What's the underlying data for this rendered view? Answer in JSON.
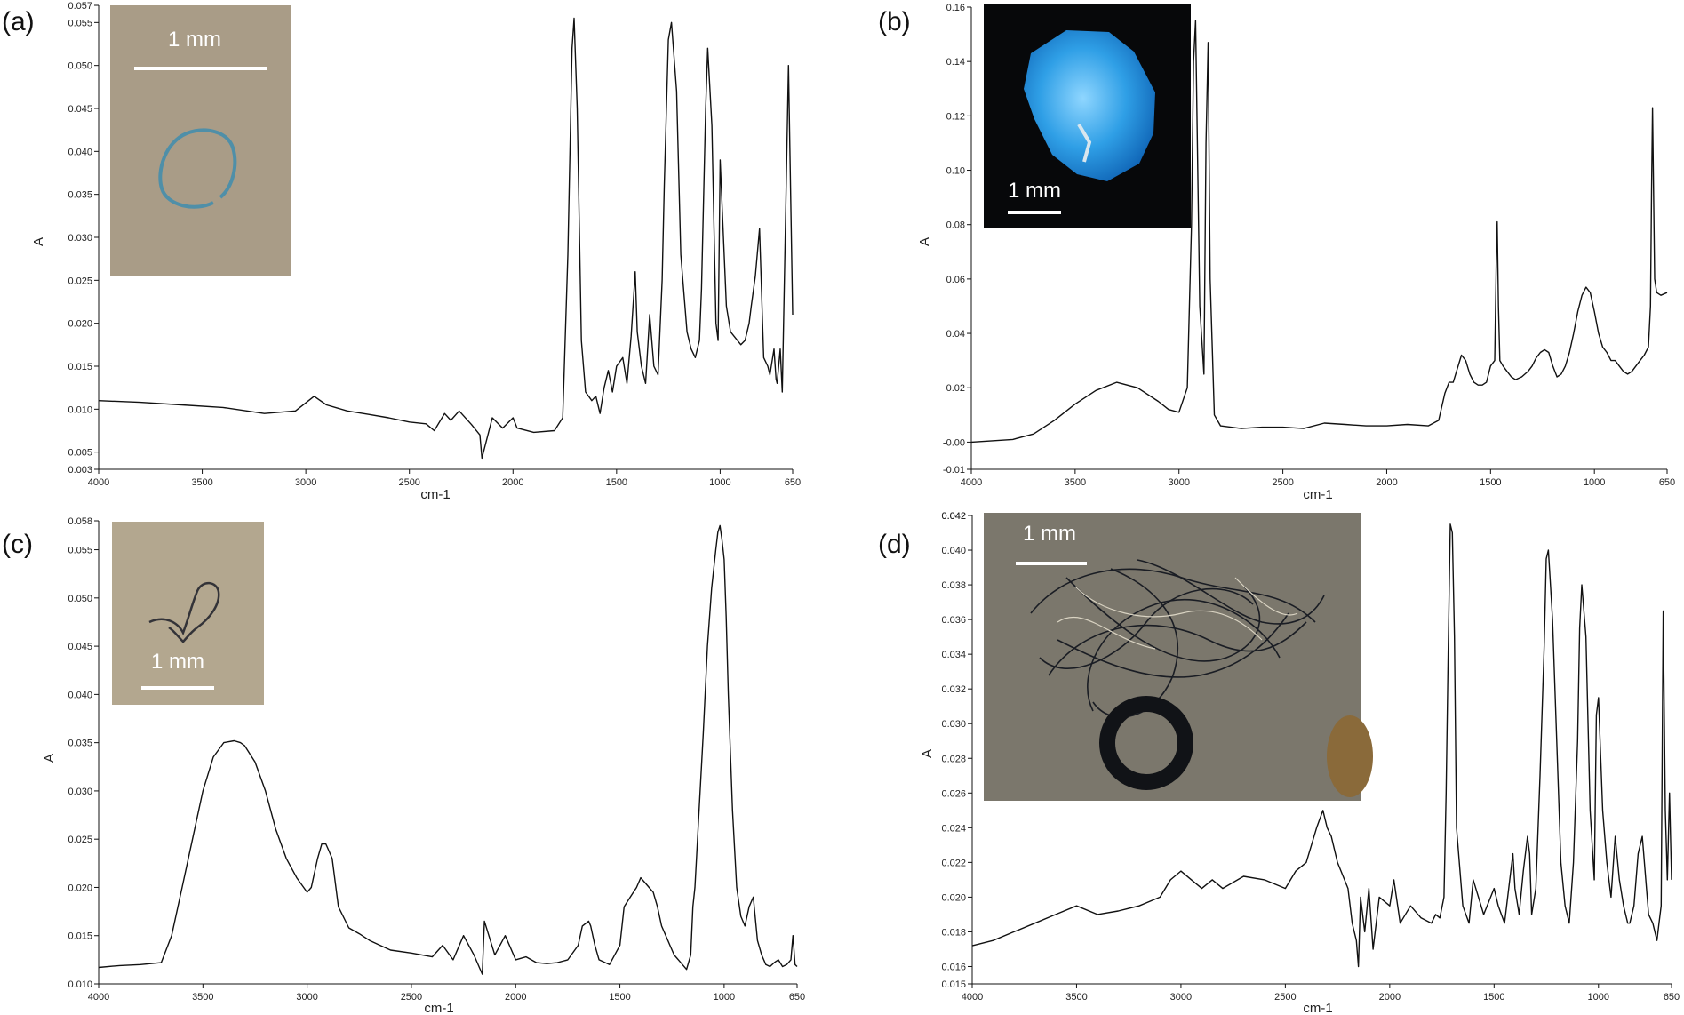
{
  "chart_data": [
    {
      "type": "line",
      "panel_label": "(a)",
      "xlabel": "cm-1",
      "ylabel": "A",
      "xlim": [
        4000,
        650
      ],
      "ylim": [
        0.003,
        0.057
      ],
      "x_ticks": [
        4000,
        3500,
        3000,
        2500,
        2000,
        1500,
        1000,
        650
      ],
      "y_ticks": [
        "0.003",
        "0.005",
        "0.010",
        "0.015",
        "0.020",
        "0.025",
        "0.030",
        "0.035",
        "0.040",
        "0.045",
        "0.050",
        "0.055",
        "0.057"
      ],
      "grid": false,
      "inset": {
        "scale_label": "1 mm",
        "style": "blue-loop-on-beige"
      },
      "series": [
        {
          "x": [
            4000,
            3800,
            3600,
            3400,
            3200,
            3050,
            2960,
            2900,
            2800,
            2700,
            2600,
            2500,
            2420,
            2380,
            2330,
            2300,
            2260,
            2200,
            2160,
            2150,
            2100,
            2050,
            2000,
            1980,
            1900,
            1800,
            1760,
            1735,
            1715,
            1705,
            1690,
            1670,
            1650,
            1620,
            1600,
            1580,
            1560,
            1540,
            1520,
            1500,
            1470,
            1450,
            1430,
            1410,
            1400,
            1380,
            1360,
            1340,
            1320,
            1300,
            1280,
            1270,
            1250,
            1235,
            1210,
            1190,
            1160,
            1140,
            1120,
            1100,
            1090,
            1070,
            1060,
            1040,
            1020,
            1010,
            1000,
            970,
            950,
            900,
            880,
            860,
            850,
            830,
            810,
            790,
            770,
            760,
            740,
            730,
            725,
            710,
            700,
            690,
            670,
            650
          ],
          "y": [
            0.011,
            0.0108,
            0.0105,
            0.0102,
            0.0095,
            0.0098,
            0.0115,
            0.0105,
            0.0098,
            0.0094,
            0.009,
            0.0085,
            0.0083,
            0.0075,
            0.0095,
            0.0087,
            0.0098,
            0.0082,
            0.007,
            0.0043,
            0.009,
            0.0078,
            0.009,
            0.0078,
            0.0073,
            0.0075,
            0.009,
            0.028,
            0.052,
            0.0555,
            0.045,
            0.018,
            0.012,
            0.011,
            0.0115,
            0.0095,
            0.0125,
            0.0145,
            0.012,
            0.015,
            0.016,
            0.013,
            0.0185,
            0.026,
            0.019,
            0.015,
            0.013,
            0.021,
            0.015,
            0.014,
            0.025,
            0.036,
            0.053,
            0.055,
            0.047,
            0.028,
            0.019,
            0.017,
            0.016,
            0.018,
            0.024,
            0.045,
            0.052,
            0.043,
            0.02,
            0.018,
            0.039,
            0.022,
            0.019,
            0.0175,
            0.018,
            0.02,
            0.022,
            0.0255,
            0.031,
            0.016,
            0.015,
            0.014,
            0.017,
            0.0135,
            0.013,
            0.017,
            0.012,
            0.025,
            0.05,
            0.021
          ]
        }
      ]
    },
    {
      "type": "line",
      "panel_label": "(b)",
      "xlabel": "cm-1",
      "ylabel": "A",
      "xlim": [
        4000,
        650
      ],
      "ylim": [
        -0.01,
        0.16
      ],
      "x_ticks": [
        4000,
        3500,
        3000,
        2500,
        2000,
        1500,
        1000,
        650
      ],
      "y_ticks": [
        "-0.01",
        "-0.00",
        "0.02",
        "0.04",
        "0.06",
        "0.08",
        "0.10",
        "0.12",
        "0.14",
        "0.16"
      ],
      "grid": false,
      "inset": {
        "scale_label": "1 mm",
        "style": "blue-fragment-on-black"
      },
      "series": [
        {
          "x": [
            4000,
            3800,
            3700,
            3600,
            3500,
            3400,
            3300,
            3200,
            3100,
            3050,
            3000,
            2960,
            2940,
            2930,
            2920,
            2900,
            2880,
            2870,
            2860,
            2850,
            2830,
            2800,
            2700,
            2600,
            2500,
            2400,
            2300,
            2200,
            2100,
            2000,
            1900,
            1800,
            1750,
            1720,
            1700,
            1680,
            1660,
            1640,
            1620,
            1600,
            1580,
            1560,
            1540,
            1520,
            1500,
            1480,
            1472,
            1468,
            1462,
            1455,
            1440,
            1420,
            1400,
            1380,
            1350,
            1320,
            1300,
            1280,
            1260,
            1240,
            1220,
            1200,
            1180,
            1160,
            1140,
            1120,
            1100,
            1080,
            1060,
            1040,
            1020,
            1000,
            980,
            960,
            940,
            920,
            900,
            880,
            860,
            840,
            820,
            800,
            780,
            760,
            740,
            730,
            725,
            720,
            710,
            700,
            680,
            650
          ],
          "y": [
            0.0,
            0.001,
            0.003,
            0.008,
            0.014,
            0.019,
            0.022,
            0.02,
            0.015,
            0.012,
            0.011,
            0.02,
            0.08,
            0.14,
            0.155,
            0.05,
            0.025,
            0.11,
            0.147,
            0.06,
            0.01,
            0.006,
            0.005,
            0.0055,
            0.0055,
            0.005,
            0.007,
            0.0065,
            0.006,
            0.006,
            0.0065,
            0.006,
            0.008,
            0.018,
            0.022,
            0.022,
            0.027,
            0.032,
            0.03,
            0.025,
            0.022,
            0.021,
            0.021,
            0.022,
            0.028,
            0.03,
            0.07,
            0.081,
            0.05,
            0.03,
            0.028,
            0.026,
            0.024,
            0.023,
            0.024,
            0.026,
            0.028,
            0.031,
            0.033,
            0.034,
            0.033,
            0.028,
            0.024,
            0.025,
            0.028,
            0.033,
            0.04,
            0.048,
            0.054,
            0.057,
            0.055,
            0.048,
            0.04,
            0.035,
            0.033,
            0.03,
            0.03,
            0.028,
            0.026,
            0.025,
            0.026,
            0.028,
            0.03,
            0.032,
            0.035,
            0.05,
            0.092,
            0.123,
            0.06,
            0.055,
            0.054,
            0.055
          ]
        }
      ]
    },
    {
      "type": "line",
      "panel_label": "(c)",
      "xlabel": "cm-1",
      "ylabel": "A",
      "xlim": [
        4000,
        650
      ],
      "ylim": [
        0.01,
        0.058
      ],
      "x_ticks": [
        4000,
        3500,
        3000,
        2500,
        2000,
        1500,
        1000,
        650
      ],
      "y_ticks": [
        "0.010",
        "0.015",
        "0.020",
        "0.025",
        "0.030",
        "0.035",
        "0.040",
        "0.045",
        "0.050",
        "0.055",
        "0.058"
      ],
      "grid": false,
      "inset": {
        "scale_label": "1 mm",
        "style": "dark-fiber-on-beige"
      },
      "series": [
        {
          "x": [
            4000,
            3900,
            3800,
            3700,
            3650,
            3600,
            3550,
            3500,
            3450,
            3400,
            3350,
            3320,
            3300,
            3250,
            3200,
            3150,
            3100,
            3050,
            3000,
            2980,
            2950,
            2930,
            2910,
            2900,
            2880,
            2850,
            2800,
            2750,
            2700,
            2650,
            2600,
            2500,
            2400,
            2350,
            2300,
            2250,
            2200,
            2160,
            2150,
            2100,
            2050,
            2000,
            1950,
            1900,
            1850,
            1800,
            1750,
            1700,
            1680,
            1650,
            1640,
            1620,
            1600,
            1550,
            1500,
            1480,
            1450,
            1420,
            1400,
            1380,
            1360,
            1340,
            1320,
            1300,
            1280,
            1260,
            1240,
            1200,
            1180,
            1160,
            1150,
            1140,
            1120,
            1100,
            1080,
            1060,
            1040,
            1030,
            1020,
            1010,
            1000,
            990,
            980,
            960,
            940,
            920,
            900,
            880,
            860,
            840,
            820,
            800,
            780,
            760,
            740,
            720,
            700,
            680,
            670,
            660,
            650
          ],
          "y": [
            0.0117,
            0.0119,
            0.012,
            0.0122,
            0.015,
            0.02,
            0.025,
            0.03,
            0.0335,
            0.035,
            0.0352,
            0.035,
            0.0347,
            0.033,
            0.03,
            0.026,
            0.023,
            0.021,
            0.0195,
            0.02,
            0.023,
            0.0245,
            0.0245,
            0.024,
            0.023,
            0.018,
            0.0158,
            0.0152,
            0.0145,
            0.014,
            0.0135,
            0.0132,
            0.0128,
            0.014,
            0.0125,
            0.015,
            0.013,
            0.011,
            0.0165,
            0.013,
            0.015,
            0.0125,
            0.0128,
            0.0122,
            0.0121,
            0.0122,
            0.0125,
            0.014,
            0.016,
            0.0165,
            0.016,
            0.014,
            0.0125,
            0.012,
            0.014,
            0.018,
            0.019,
            0.02,
            0.021,
            0.0205,
            0.02,
            0.0195,
            0.018,
            0.016,
            0.015,
            0.014,
            0.013,
            0.012,
            0.0115,
            0.013,
            0.018,
            0.02,
            0.028,
            0.036,
            0.045,
            0.051,
            0.055,
            0.0568,
            0.0575,
            0.056,
            0.054,
            0.048,
            0.04,
            0.028,
            0.02,
            0.017,
            0.016,
            0.018,
            0.019,
            0.0145,
            0.013,
            0.012,
            0.0118,
            0.0122,
            0.0125,
            0.0118,
            0.012,
            0.0125,
            0.015,
            0.012,
            0.0118
          ]
        }
      ]
    },
    {
      "type": "line",
      "panel_label": "(d)",
      "xlabel": "cm-1",
      "ylabel": "A",
      "xlim": [
        4000,
        650
      ],
      "ylim": [
        0.015,
        0.042
      ],
      "x_ticks": [
        4000,
        3500,
        3000,
        2500,
        2000,
        1500,
        1000,
        650
      ],
      "y_ticks": [
        "0.015",
        "0.016",
        "0.018",
        "0.020",
        "0.022",
        "0.024",
        "0.026",
        "0.028",
        "0.030",
        "0.032",
        "0.034",
        "0.036",
        "0.038",
        "0.040",
        "0.042",
        "0.042"
      ],
      "grid": false,
      "inset": {
        "scale_label": "1 mm",
        "style": "dark-fiber-tangle-on-grey"
      },
      "series": [
        {
          "x": [
            4000,
            3900,
            3800,
            3700,
            3600,
            3500,
            3400,
            3300,
            3200,
            3100,
            3050,
            3000,
            2950,
            2900,
            2850,
            2800,
            2700,
            2600,
            2500,
            2450,
            2400,
            2350,
            2320,
            2300,
            2280,
            2250,
            2200,
            2180,
            2160,
            2150,
            2140,
            2120,
            2100,
            2080,
            2050,
            2000,
            1980,
            1950,
            1900,
            1850,
            1800,
            1780,
            1760,
            1740,
            1730,
            1720,
            1710,
            1700,
            1690,
            1680,
            1650,
            1620,
            1600,
            1550,
            1500,
            1480,
            1450,
            1420,
            1410,
            1400,
            1380,
            1360,
            1340,
            1330,
            1320,
            1300,
            1280,
            1260,
            1250,
            1240,
            1220,
            1200,
            1180,
            1160,
            1140,
            1120,
            1100,
            1090,
            1080,
            1060,
            1040,
            1020,
            1010,
            1000,
            980,
            960,
            940,
            920,
            900,
            880,
            860,
            850,
            830,
            810,
            790,
            770,
            760,
            740,
            720,
            710,
            700,
            690,
            680,
            670,
            660,
            650
          ],
          "y": [
            0.0172,
            0.0175,
            0.018,
            0.0185,
            0.019,
            0.0195,
            0.019,
            0.0192,
            0.0195,
            0.02,
            0.021,
            0.0215,
            0.021,
            0.0205,
            0.021,
            0.0205,
            0.0212,
            0.021,
            0.0205,
            0.0215,
            0.022,
            0.024,
            0.025,
            0.024,
            0.0235,
            0.022,
            0.0205,
            0.0185,
            0.0175,
            0.016,
            0.02,
            0.018,
            0.0205,
            0.017,
            0.02,
            0.0195,
            0.021,
            0.0185,
            0.0195,
            0.0188,
            0.0185,
            0.019,
            0.0188,
            0.02,
            0.026,
            0.034,
            0.0415,
            0.041,
            0.035,
            0.024,
            0.0195,
            0.0185,
            0.021,
            0.019,
            0.0205,
            0.0195,
            0.0185,
            0.0215,
            0.0225,
            0.0205,
            0.019,
            0.0215,
            0.0235,
            0.0225,
            0.019,
            0.0205,
            0.027,
            0.0345,
            0.0395,
            0.04,
            0.036,
            0.029,
            0.022,
            0.0195,
            0.0185,
            0.022,
            0.029,
            0.0355,
            0.038,
            0.035,
            0.025,
            0.021,
            0.0305,
            0.0315,
            0.025,
            0.022,
            0.02,
            0.0235,
            0.021,
            0.0195,
            0.0185,
            0.0185,
            0.0195,
            0.0225,
            0.0235,
            0.0205,
            0.019,
            0.0185,
            0.0175,
            0.0185,
            0.0195,
            0.0365,
            0.025,
            0.021,
            0.026,
            0.021
          ]
        }
      ]
    }
  ]
}
